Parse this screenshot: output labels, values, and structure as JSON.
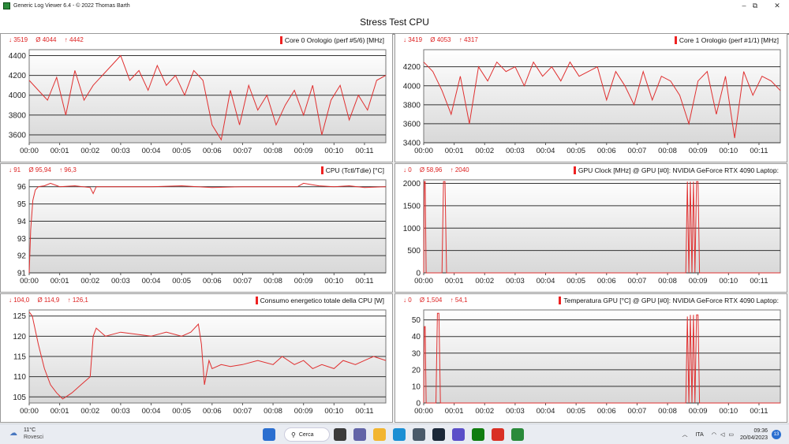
{
  "window": {
    "title": "Generic Log Viewer 6.4 - © 2022 Thomas Barth",
    "main_title": "Stress Test CPU",
    "minimize_glyph": "–",
    "maximize_glyph": "⧉",
    "close_glyph": "✕"
  },
  "panels": [
    {
      "title": "Core 0 Orologio (perf #5/6) [MHz]",
      "stats": {
        "min": "↓ 3519",
        "avg": "Ø 4044",
        "max": "↑ 4442"
      }
    },
    {
      "title": "Core 1 Orologio (perf #1/1) [MHz]",
      "stats": {
        "min": "↓ 3419",
        "avg": "Ø 4053",
        "max": "↑ 4317"
      }
    },
    {
      "title": "CPU (Tctl/Tdie) [°C]",
      "stats": {
        "min": "↓ 91",
        "avg": "Ø 95,94",
        "max": "↑ 96,3"
      }
    },
    {
      "title": "GPU Clock [MHz] @ GPU [#0]: NVIDIA GeForce RTX 4090 Laptop:",
      "stats": {
        "min": "↓ 0",
        "avg": "Ø 58,96",
        "max": "↑ 2040"
      }
    },
    {
      "title": "Consumo energetico totale della CPU [W]",
      "stats": {
        "min": "↓ 104,0",
        "avg": "Ø 114,9",
        "max": "↑ 126,1"
      }
    },
    {
      "title": "Temperatura GPU [°C] @ GPU [#0]: NVIDIA GeForce RTX 4090 Laptop:",
      "stats": {
        "min": "↓ 0",
        "avg": "Ø 1,504",
        "max": "↑ 54,1"
      }
    }
  ],
  "chart_data": [
    {
      "type": "line",
      "title": "Core 0 Orologio (perf #5/6) [MHz]",
      "x_ticks": [
        "00:00",
        "00:01",
        "00:02",
        "00:03",
        "00:04",
        "00:05",
        "00:06",
        "00:07",
        "00:08",
        "00:09",
        "00:10",
        "00:11"
      ],
      "y_ticks": [
        3600,
        3800,
        4000,
        4200,
        4400
      ],
      "ylim": [
        3520,
        4460
      ],
      "xlim_minutes": [
        0,
        11.7
      ],
      "color": "#e03030",
      "series": [
        {
          "x": [
            0,
            0.3,
            0.6,
            0.9,
            1.2,
            1.5,
            1.8,
            2.1,
            2.4,
            2.7,
            3.0,
            3.3,
            3.6,
            3.9,
            4.2,
            4.5,
            4.8,
            5.1,
            5.4,
            5.7,
            6.0,
            6.3,
            6.6,
            6.9,
            7.2,
            7.5,
            7.8,
            8.1,
            8.4,
            8.7,
            9.0,
            9.3,
            9.6,
            9.9,
            10.2,
            10.5,
            10.8,
            11.1,
            11.4,
            11.7
          ],
          "y": [
            4150,
            4050,
            3950,
            4180,
            3800,
            4250,
            3950,
            4100,
            4200,
            4300,
            4400,
            4150,
            4250,
            4050,
            4300,
            4100,
            4200,
            4000,
            4250,
            4150,
            3700,
            3550,
            4050,
            3700,
            4100,
            3850,
            4000,
            3700,
            3900,
            4050,
            3800,
            4100,
            3600,
            3950,
            4100,
            3750,
            4000,
            3850,
            4150,
            4200
          ]
        }
      ],
      "grid": true
    },
    {
      "type": "line",
      "title": "Core 1 Orologio (perf #1/1) [MHz]",
      "x_ticks": [
        "00:00",
        "00:01",
        "00:02",
        "00:03",
        "00:04",
        "00:05",
        "00:06",
        "00:07",
        "00:08",
        "00:09",
        "00:10",
        "00:11"
      ],
      "y_ticks": [
        3400,
        3600,
        3800,
        4000,
        4200
      ],
      "ylim": [
        3400,
        4380
      ],
      "xlim_minutes": [
        0,
        11.7
      ],
      "color": "#e03030",
      "series": [
        {
          "x": [
            0,
            0.3,
            0.6,
            0.9,
            1.2,
            1.5,
            1.8,
            2.1,
            2.4,
            2.7,
            3.0,
            3.3,
            3.6,
            3.9,
            4.2,
            4.5,
            4.8,
            5.1,
            5.4,
            5.7,
            6.0,
            6.3,
            6.6,
            6.9,
            7.2,
            7.5,
            7.8,
            8.1,
            8.4,
            8.7,
            9.0,
            9.3,
            9.6,
            9.9,
            10.2,
            10.5,
            10.8,
            11.1,
            11.4,
            11.7
          ],
          "y": [
            4250,
            4150,
            3950,
            3700,
            4100,
            3600,
            4200,
            4050,
            4250,
            4150,
            4200,
            4000,
            4250,
            4100,
            4200,
            4050,
            4250,
            4100,
            4150,
            4200,
            3850,
            4150,
            4000,
            3800,
            4150,
            3850,
            4100,
            4050,
            3900,
            3600,
            4050,
            4150,
            3700,
            4100,
            3450,
            4150,
            3900,
            4100,
            4050,
            3950
          ]
        }
      ],
      "grid": true
    },
    {
      "type": "line",
      "title": "CPU (Tctl/Tdie) [°C]",
      "x_ticks": [
        "00:00",
        "00:01",
        "00:02",
        "00:03",
        "00:04",
        "00:05",
        "00:06",
        "00:07",
        "00:08",
        "00:09",
        "00:10",
        "00:11"
      ],
      "y_ticks": [
        91,
        92,
        93,
        94,
        95,
        96
      ],
      "ylim": [
        91,
        96.4
      ],
      "xlim_minutes": [
        0,
        11.7
      ],
      "color": "#e03030",
      "series": [
        {
          "x": [
            0,
            0.05,
            0.12,
            0.2,
            0.3,
            0.5,
            0.7,
            1.0,
            1.5,
            2.0,
            2.1,
            2.2,
            3.0,
            4.0,
            5.0,
            6.0,
            7.0,
            8.0,
            8.8,
            9.0,
            9.5,
            10.0,
            10.5,
            11.0,
            11.7
          ],
          "y": [
            91,
            93.5,
            95.2,
            95.8,
            96.0,
            96.05,
            96.2,
            96.0,
            96.05,
            95.95,
            95.6,
            96.0,
            96.0,
            96.0,
            96.05,
            95.95,
            96.0,
            96.0,
            96.0,
            96.2,
            96.05,
            96.0,
            96.05,
            95.95,
            96.0
          ]
        }
      ],
      "grid": true
    },
    {
      "type": "line",
      "title": "GPU Clock [MHz] @ GPU [#0]: NVIDIA GeForce RTX 4090 Laptop:",
      "x_ticks": [
        "00:00",
        "00:01",
        "00:02",
        "00:03",
        "00:04",
        "00:05",
        "00:06",
        "00:07",
        "00:08",
        "00:09",
        "00:10",
        "00:11"
      ],
      "y_ticks": [
        0,
        500,
        1000,
        1500,
        2000
      ],
      "ylim": [
        0,
        2080
      ],
      "xlim_minutes": [
        0,
        11.7
      ],
      "color": "#e03030",
      "series": [
        {
          "x": [
            0,
            0.02,
            0.05,
            0.08,
            0.6,
            0.65,
            0.7,
            0.75,
            8.6,
            8.65,
            8.7,
            8.75,
            8.8,
            8.85,
            8.9,
            8.95,
            9.0,
            9.05,
            9.1,
            11.7
          ],
          "y": [
            0,
            2040,
            2040,
            0,
            0,
            2040,
            2040,
            0,
            0,
            2040,
            0,
            2040,
            0,
            2040,
            0,
            2040,
            2040,
            0,
            0,
            0
          ]
        }
      ],
      "grid": true
    },
    {
      "type": "line",
      "title": "Consumo energetico totale della CPU [W]",
      "x_ticks": [
        "00:00",
        "00:01",
        "00:02",
        "00:03",
        "00:04",
        "00:05",
        "00:06",
        "00:07",
        "00:08",
        "00:09",
        "00:10",
        "00:11"
      ],
      "y_ticks": [
        105,
        110,
        115,
        120,
        125
      ],
      "ylim": [
        103.5,
        126.5
      ],
      "xlim_minutes": [
        0,
        11.7
      ],
      "color": "#e03030",
      "series": [
        {
          "x": [
            0,
            0.1,
            0.3,
            0.5,
            0.7,
            0.9,
            1.1,
            1.4,
            1.7,
            2.0,
            2.05,
            2.1,
            2.2,
            2.5,
            3.0,
            3.5,
            4.0,
            4.5,
            5.0,
            5.3,
            5.55,
            5.65,
            5.75,
            5.9,
            6.0,
            6.3,
            6.6,
            7.0,
            7.5,
            8.0,
            8.3,
            8.7,
            9.0,
            9.3,
            9.6,
            10.0,
            10.3,
            10.7,
            11.0,
            11.3,
            11.7
          ],
          "y": [
            126,
            125,
            118,
            112,
            108,
            106,
            104.5,
            106,
            108,
            110,
            115,
            120,
            122,
            120,
            121,
            120.5,
            120,
            121,
            120,
            121,
            123,
            118,
            108,
            114,
            112,
            113,
            112.5,
            113,
            114,
            113,
            115,
            113,
            114,
            112,
            113,
            112,
            114,
            113,
            114,
            115,
            114
          ]
        }
      ],
      "grid": true
    },
    {
      "type": "line",
      "title": "Temperatura GPU [°C] @ GPU [#0]: NVIDIA GeForce RTX 4090 Laptop:",
      "x_ticks": [
        "00:00",
        "00:01",
        "00:02",
        "00:03",
        "00:04",
        "00:05",
        "00:06",
        "00:07",
        "00:08",
        "00:09",
        "00:10",
        "00:11"
      ],
      "y_ticks": [
        0,
        10,
        20,
        30,
        40,
        50
      ],
      "ylim": [
        0,
        56
      ],
      "xlim_minutes": [
        0,
        11.7
      ],
      "color": "#e03030",
      "series": [
        {
          "x": [
            0,
            0.02,
            0.05,
            0.08,
            0.4,
            0.45,
            0.5,
            0.55,
            8.6,
            8.65,
            8.7,
            8.75,
            8.8,
            8.85,
            8.9,
            8.95,
            9.0,
            9.05,
            9.1,
            11.7
          ],
          "y": [
            0,
            46,
            46,
            0,
            0,
            54,
            54,
            0,
            0,
            52,
            0,
            53,
            0,
            53,
            0,
            53,
            53,
            0,
            0,
            0
          ]
        }
      ],
      "grid": true
    }
  ],
  "taskbar": {
    "weather_temp": "11°C",
    "weather_desc": "Rovesci",
    "search_label": "Cerca",
    "language": "ITA",
    "time": "09:36",
    "date": "20/04/2023",
    "notification_count": "13",
    "apps": [
      {
        "name": "start-icon",
        "color": "#2b6fd0"
      },
      {
        "name": "terminal-icon",
        "color": "#3a3a3a"
      },
      {
        "name": "teams-icon",
        "color": "#6264a7"
      },
      {
        "name": "explorer-icon",
        "color": "#f2b530"
      },
      {
        "name": "edge-icon",
        "color": "#1b8fd4"
      },
      {
        "name": "calculator-icon",
        "color": "#4a5a6a"
      },
      {
        "name": "steam-icon",
        "color": "#1b2838"
      },
      {
        "name": "store-icon",
        "color": "#5b4fc8"
      },
      {
        "name": "xbox-icon",
        "color": "#107c10"
      },
      {
        "name": "chrome-icon",
        "color": "#d93025"
      },
      {
        "name": "logviewer-icon",
        "color": "#2a8a3a"
      }
    ]
  }
}
